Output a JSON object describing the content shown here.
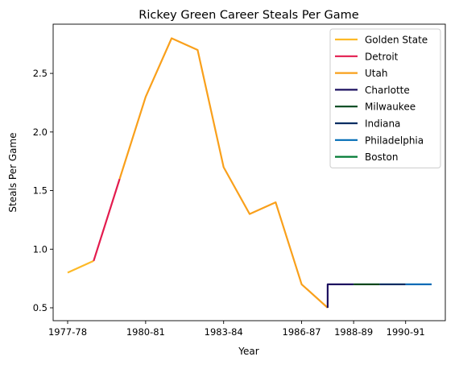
{
  "chart_data": {
    "type": "line",
    "title": "Rickey Green Career Steals Per Game",
    "xlabel": "Year",
    "ylabel": "Steals Per Game",
    "x_ticks": [
      "1977-78",
      "1980-81",
      "1983-84",
      "1986-87",
      "1988-89",
      "1990-91"
    ],
    "y_ticks": [
      "0.5",
      "1.0",
      "1.5",
      "2.0",
      "2.5"
    ],
    "ylim": [
      0.39,
      2.92
    ],
    "legend_position": "top-right",
    "grid": false,
    "series": [
      {
        "name": "Golden State",
        "color": "#FDB927",
        "points": [
          [
            "1977-78",
            0.8
          ],
          [
            "1978-79",
            0.9
          ]
        ]
      },
      {
        "name": "Detroit",
        "color": "#E31B4E",
        "points": [
          [
            "1978-79",
            0.9
          ],
          [
            "1979-80",
            1.6
          ]
        ]
      },
      {
        "name": "Utah",
        "color": "#F9A01B",
        "points": [
          [
            "1979-80",
            1.6
          ],
          [
            "1980-81",
            2.3
          ],
          [
            "1981-82",
            2.8
          ],
          [
            "1982-83",
            2.7
          ],
          [
            "1983-84",
            1.7
          ],
          [
            "1984-85",
            1.3
          ],
          [
            "1985-86",
            1.4
          ],
          [
            "1986-87",
            0.7
          ],
          [
            "1987-88",
            0.5
          ]
        ]
      },
      {
        "name": "Charlotte",
        "color": "#1D1160",
        "points": [
          [
            "1987-88",
            0.5
          ],
          [
            "1987-88",
            0.7
          ],
          [
            "1988-89",
            0.7
          ]
        ]
      },
      {
        "name": "Milwaukee",
        "color": "#00471B",
        "points": [
          [
            "1988-89",
            0.7
          ],
          [
            "1989-90",
            0.7
          ]
        ]
      },
      {
        "name": "Indiana",
        "color": "#002D62",
        "points": [
          [
            "1989-90",
            0.7
          ],
          [
            "1990-91",
            0.7
          ]
        ]
      },
      {
        "name": "Philadelphia",
        "color": "#006BB6",
        "points": [
          [
            "1990-91",
            0.7
          ],
          [
            "1991-92",
            0.7
          ]
        ]
      },
      {
        "name": "Boston",
        "color": "#007A33",
        "points": []
      }
    ]
  }
}
